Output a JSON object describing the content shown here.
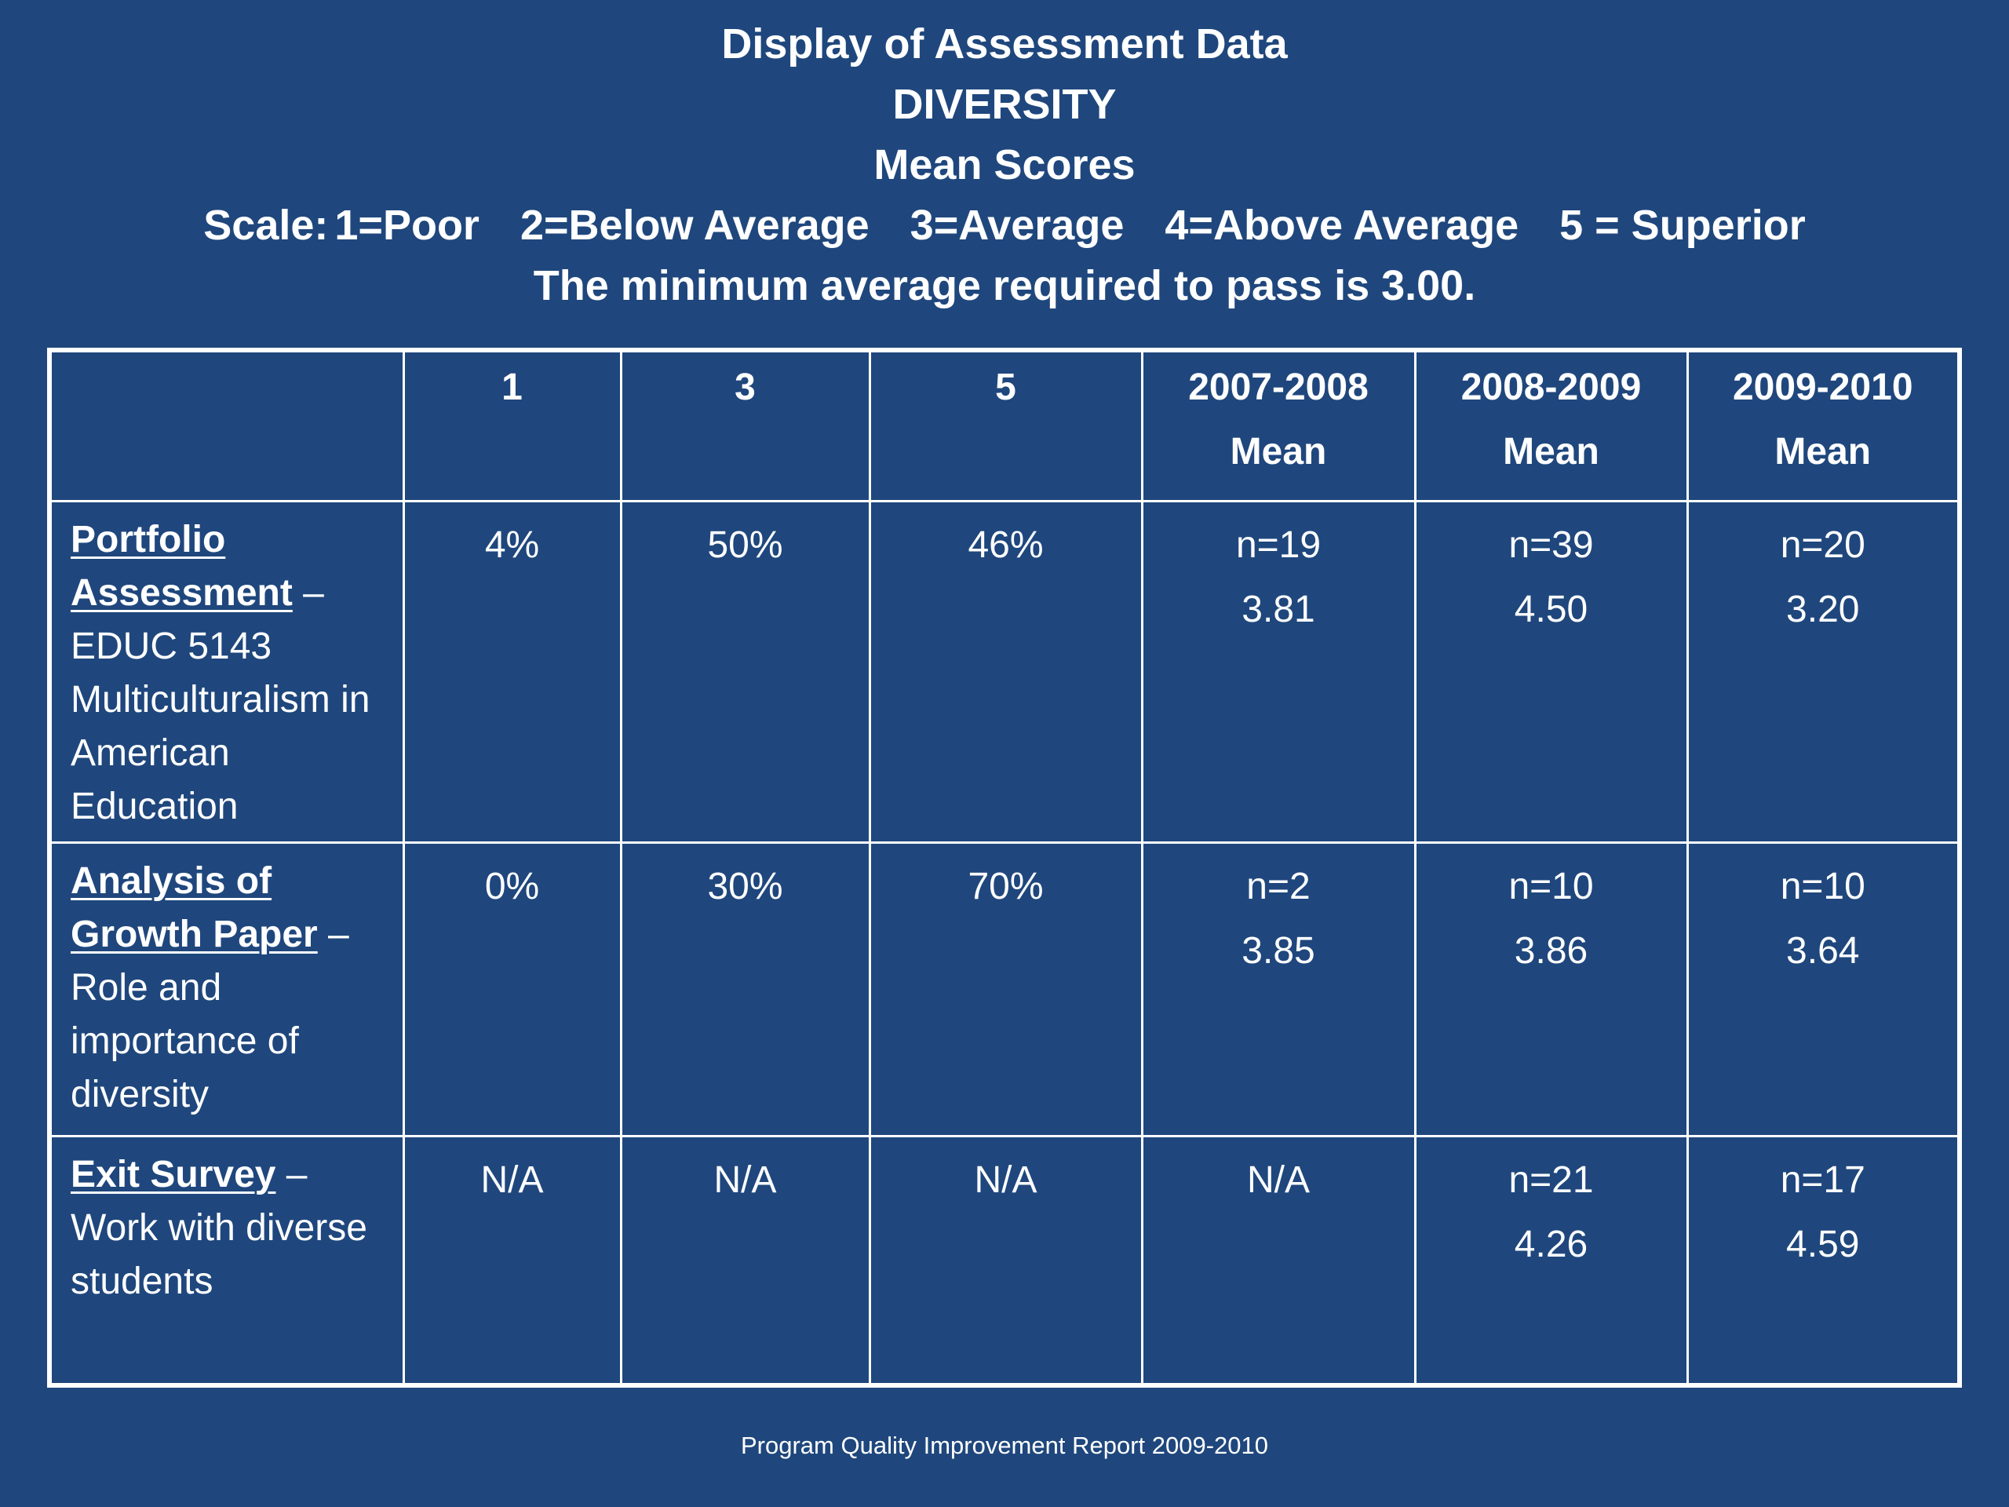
{
  "slide": {
    "title": "Display of Assessment Data",
    "subtitle": "DIVERSITY",
    "subtitle2": "Mean Scores",
    "scale_prefix": "Scale:",
    "scale": [
      "1=Poor",
      "2=Below Average",
      "3=Average",
      "4=Above Average",
      "5 = Superior"
    ],
    "pass_note": "The minimum average required to pass is 3.00.",
    "footer": "Program Quality Improvement Report  2009-2010",
    "background_color": "#1f477d"
  },
  "table": {
    "headers": [
      {
        "line1": "",
        "line2": ""
      },
      {
        "line1": "1",
        "line2": ""
      },
      {
        "line1": "3",
        "line2": ""
      },
      {
        "line1": "5",
        "line2": ""
      },
      {
        "line1": "2007-2008",
        "line2": "Mean"
      },
      {
        "line1": "2008-2009",
        "line2": "Mean"
      },
      {
        "line1": "2009-2010",
        "line2": "Mean"
      }
    ],
    "rows": [
      {
        "name": "Portfolio Assessment",
        "dash": " –",
        "description": "EDUC 5143 Multiculturalism in American Education",
        "cells": [
          {
            "n": "4%",
            "mean": ""
          },
          {
            "n": "50%",
            "mean": ""
          },
          {
            "n": "46%",
            "mean": ""
          },
          {
            "n": "n=19",
            "mean": "3.81"
          },
          {
            "n": "n=39",
            "mean": "4.50"
          },
          {
            "n": "n=20",
            "mean": "3.20"
          }
        ]
      },
      {
        "name": "Analysis of Growth Paper",
        "dash": " –",
        "description": "Role and importance of diversity",
        "cells": [
          {
            "n": "0%",
            "mean": ""
          },
          {
            "n": "30%",
            "mean": ""
          },
          {
            "n": "70%",
            "mean": ""
          },
          {
            "n": "n=2",
            "mean": "3.85"
          },
          {
            "n": "n=10",
            "mean": "3.86"
          },
          {
            "n": "n=10",
            "mean": "3.64"
          }
        ]
      },
      {
        "name": "Exit Survey",
        "dash": " –",
        "description": "Work with diverse students",
        "cells": [
          {
            "n": "N/A",
            "mean": ""
          },
          {
            "n": "N/A",
            "mean": ""
          },
          {
            "n": "N/A",
            "mean": ""
          },
          {
            "n": "N/A",
            "mean": ""
          },
          {
            "n": "n=21",
            "mean": "4.26"
          },
          {
            "n": "n=17",
            "mean": "4.59"
          }
        ]
      }
    ]
  }
}
